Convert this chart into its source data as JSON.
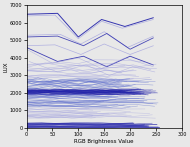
{
  "xlabel": "RGB Brightness Value",
  "ylabel": "LUX",
  "xlim": [
    0,
    300
  ],
  "ylim": [
    0,
    7000
  ],
  "xticks": [
    0,
    50,
    100,
    150,
    200,
    250,
    300
  ],
  "yticks": [
    0,
    1000,
    2000,
    3000,
    4000,
    5000,
    6000,
    7000
  ],
  "dark_blue": "#2222aa",
  "mid_blue": "#5566cc",
  "light_blue": "#9999dd",
  "bg_color": "#e8e8e8",
  "seed": 7
}
